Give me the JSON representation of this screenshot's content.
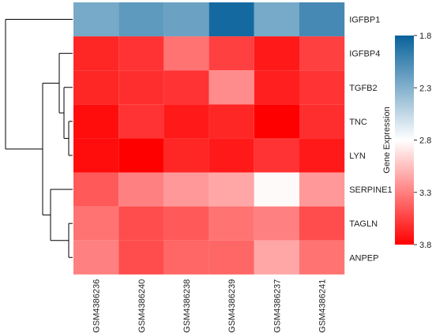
{
  "chart_data": {
    "type": "heatmap",
    "title": "",
    "rows": [
      "IGFBP1",
      "IGFBP4",
      "TGFB2",
      "TNC",
      "LYN",
      "SERPINE1",
      "TAGLN",
      "ANPEP"
    ],
    "columns": [
      "GSM4386236",
      "GSM4386240",
      "GSM4386238",
      "GSM4386239",
      "GSM4386237",
      "GSM4386241"
    ],
    "values": [
      [
        2.25,
        2.15,
        2.2,
        1.85,
        2.25,
        2.05
      ],
      [
        3.65,
        3.6,
        3.35,
        3.55,
        3.7,
        3.55
      ],
      [
        3.65,
        3.62,
        3.6,
        3.25,
        3.68,
        3.6
      ],
      [
        3.75,
        3.6,
        3.7,
        3.65,
        3.82,
        3.62
      ],
      [
        3.75,
        3.8,
        3.65,
        3.7,
        3.6,
        3.7
      ],
      [
        3.45,
        3.3,
        3.2,
        3.15,
        2.82,
        3.2
      ],
      [
        3.35,
        3.5,
        3.45,
        3.35,
        3.3,
        3.5
      ],
      [
        3.3,
        3.5,
        3.4,
        3.4,
        3.15,
        3.35
      ]
    ],
    "colorbar": {
      "label": "Gene Expression",
      "ticks": [
        "1.8",
        "2.3",
        "2.8",
        "3.3",
        "3.8"
      ],
      "min": 1.8,
      "max": 3.8,
      "low_color": "#08629b",
      "mid_color": "#ffffff",
      "high_color": "#ff0000",
      "mid_value": 2.8
    },
    "row_dendrogram": "left",
    "grid": false
  }
}
